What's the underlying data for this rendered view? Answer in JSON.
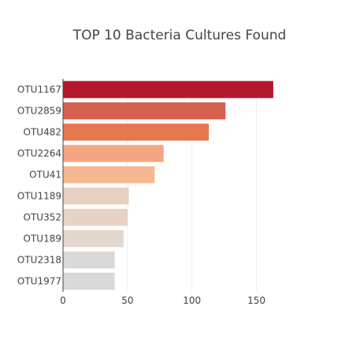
{
  "chart_data": {
    "type": "bar",
    "orientation": "horizontal",
    "title": "TOP 10 Bacteria Cultures Found",
    "xlabel": "",
    "ylabel": "",
    "categories": [
      "OTU1167",
      "OTU2859",
      "OTU482",
      "OTU2264",
      "OTU41",
      "OTU1189",
      "OTU352",
      "OTU189",
      "OTU2318",
      "OTU1977"
    ],
    "values": [
      163,
      126,
      113,
      78,
      71,
      51,
      50,
      47,
      40,
      40
    ],
    "bar_colors": [
      "#b2182b",
      "#d6604d",
      "#e6784f",
      "#f4a582",
      "#f6b88e",
      "#e6d1c2",
      "#e6d3c6",
      "#e3d6cd",
      "#d9d9d9",
      "#d9d9d9"
    ],
    "xlim": [
      0,
      182
    ],
    "xticks": [
      0,
      50,
      100,
      150
    ],
    "grid": true,
    "legend": false
  }
}
